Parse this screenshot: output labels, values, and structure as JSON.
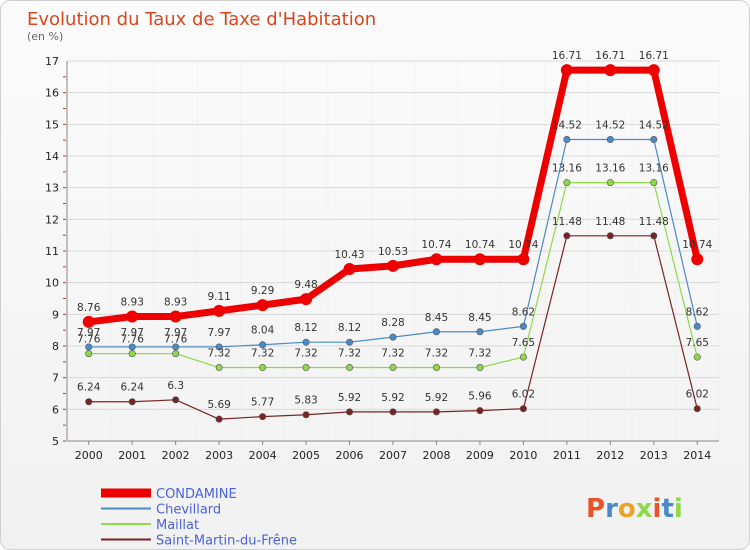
{
  "chart_data": {
    "type": "line",
    "title": "Evolution du Taux de Taxe d'Habitation",
    "subtitle": "(en %)",
    "x": [
      "2000",
      "2001",
      "2002",
      "2003",
      "2004",
      "2005",
      "2006",
      "2007",
      "2008",
      "2009",
      "2010",
      "2011",
      "2012",
      "2013",
      "2014"
    ],
    "ylim": [
      5,
      17
    ],
    "yticks": [
      5,
      6,
      7,
      8,
      9,
      10,
      11,
      12,
      13,
      14,
      15,
      16,
      17
    ],
    "grid": true,
    "legend_position": "bottom-left",
    "series": [
      {
        "name": "CONDAMINE",
        "color": "#ee0000",
        "width": 7,
        "values": [
          8.76,
          8.93,
          8.93,
          9.11,
          9.29,
          9.48,
          10.43,
          10.53,
          10.74,
          10.74,
          10.74,
          16.71,
          16.71,
          16.71,
          10.74
        ],
        "labels": [
          "8.76",
          "8.93",
          "8.93",
          "9.11",
          "9.29",
          "9.48",
          "10.43",
          "10.53",
          "10.74",
          "10.74",
          "10.74",
          "16.71",
          "16.71",
          "16.71",
          "10.74"
        ]
      },
      {
        "name": "Chevillard",
        "color": "#4a8ac9",
        "width": 1.2,
        "values": [
          7.97,
          7.97,
          7.97,
          7.97,
          8.04,
          8.12,
          8.12,
          8.28,
          8.45,
          8.45,
          8.62,
          14.52,
          14.52,
          14.52,
          8.62
        ],
        "labels": [
          "7.97",
          "7.97",
          "7.97",
          "7.97",
          "8.04",
          "8.12",
          "8.12",
          "8.28",
          "8.45",
          "8.45",
          "8.62",
          "14.52",
          "14.52",
          "14.52",
          "8.62"
        ]
      },
      {
        "name": "Maillat",
        "color": "#8ed84a",
        "width": 1.2,
        "values": [
          7.76,
          7.76,
          7.76,
          7.32,
          7.32,
          7.32,
          7.32,
          7.32,
          7.32,
          7.32,
          7.65,
          13.16,
          13.16,
          13.16,
          7.65
        ],
        "labels": [
          "7.76",
          "7.76",
          "7.76",
          "7.32",
          "7.32",
          "7.32",
          "7.32",
          "7.32",
          "7.32",
          "7.32",
          "7.65",
          "13.16",
          "13.16",
          "13.16",
          "7.65"
        ]
      },
      {
        "name": "Saint-Martin-du-Frêne",
        "color": "#7a2323",
        "width": 1.2,
        "values": [
          6.24,
          6.24,
          6.3,
          5.69,
          5.77,
          5.83,
          5.92,
          5.92,
          5.92,
          5.96,
          6.02,
          11.48,
          11.48,
          11.48,
          6.02
        ],
        "labels": [
          "6.24",
          "6.24",
          "6.3",
          "5.69",
          "5.77",
          "5.83",
          "5.92",
          "5.92",
          "5.92",
          "5.96",
          "6.02",
          "11.48",
          "11.48",
          "11.48",
          "6.02"
        ]
      }
    ]
  },
  "logo": {
    "text": "Proxiti"
  }
}
